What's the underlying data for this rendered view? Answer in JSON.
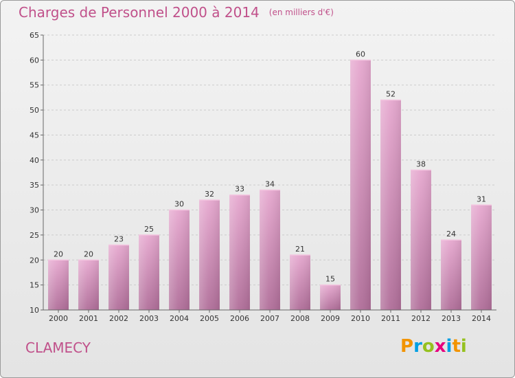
{
  "header": {
    "title": "Charges de Personnel 2000 à 2014",
    "subtitle": "(en milliers d'€)"
  },
  "footer": {
    "town": "CLAMECY",
    "brand_letters": [
      "P",
      "r",
      "o",
      "x",
      "i",
      "t",
      "i"
    ]
  },
  "colors": {
    "title": "#c0508a",
    "bar_top": "#e6a8cf",
    "bar_bottom": "#b06e99",
    "brand": [
      "#f29400",
      "#009fe3",
      "#95c11f",
      "#e6007e",
      "#009fe3",
      "#f29400",
      "#95c11f"
    ]
  },
  "chart_data": {
    "type": "bar",
    "categories": [
      "2000",
      "2001",
      "2002",
      "2003",
      "2004",
      "2005",
      "2006",
      "2007",
      "2008",
      "2009",
      "2010",
      "2011",
      "2012",
      "2013",
      "2014"
    ],
    "values": [
      20,
      20,
      23,
      25,
      30,
      32,
      33,
      34,
      21,
      15,
      60,
      52,
      38,
      24,
      31
    ],
    "title": "Charges de Personnel 2000 à 2014",
    "xlabel": "",
    "ylabel": "",
    "ylim": [
      10,
      65
    ],
    "yticks": [
      10,
      15,
      20,
      25,
      30,
      35,
      40,
      45,
      50,
      55,
      60,
      65
    ],
    "grid": true,
    "legend": "none"
  }
}
